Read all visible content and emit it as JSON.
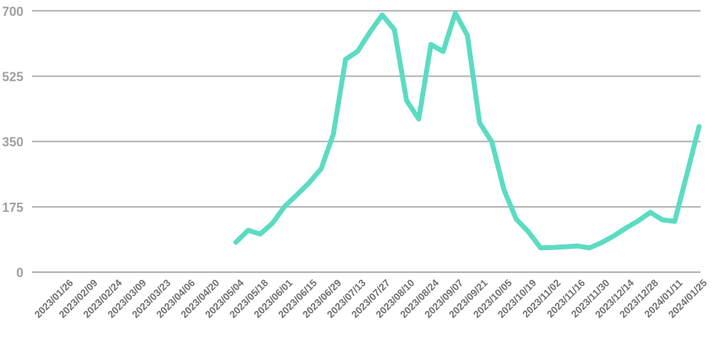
{
  "page": {
    "background": "#ffffff"
  },
  "chart_data": {
    "type": "line",
    "title": "",
    "xlabel": "",
    "ylabel": "",
    "ylim": [
      0,
      700
    ],
    "yticks": [
      0,
      175,
      350,
      525,
      700
    ],
    "grid": "horizontal",
    "legend": "none",
    "colors": {
      "line": "#5cdcc2",
      "gridline": "#adadad",
      "y_tick_label": "#a0a0a0",
      "x_tick_label": "#707070",
      "background": "#ffffff"
    },
    "x_axis": {
      "tick_labels": [
        "2023/01/26",
        "2023/02/09",
        "2023/02/24",
        "2023/03/09",
        "2023/03/23",
        "2023/04/06",
        "2023/04/20",
        "2023/05/04",
        "2023/05/18",
        "2023/06/01",
        "2023/06/15",
        "2023/06/29",
        "2023/07/13",
        "2023/07/27",
        "2023/08/10",
        "2023/08/24",
        "2023/09/07",
        "2023/09/21",
        "2023/10/05",
        "2023/10/19",
        "2023/11/02",
        "2023/11/16",
        "2023/11/30",
        "2023/12/14",
        "2023/12/28",
        "2024/01/11",
        "2024/01/25"
      ],
      "tick_interval_days": 14,
      "label_rotation_deg": 45
    },
    "series": [
      {
        "name": "value",
        "color": "#5cdcc2",
        "point_interval_days": 7,
        "data_starts_at_tick": "2023/05/04",
        "x": [
          "2023/05/04",
          "2023/05/11",
          "2023/05/18",
          "2023/05/25",
          "2023/06/01",
          "2023/06/08",
          "2023/06/15",
          "2023/06/22",
          "2023/06/29",
          "2023/07/06",
          "2023/07/13",
          "2023/07/20",
          "2023/07/27",
          "2023/08/03",
          "2023/08/10",
          "2023/08/17",
          "2023/08/24",
          "2023/08/31",
          "2023/09/07",
          "2023/09/14",
          "2023/09/21",
          "2023/09/28",
          "2023/10/05",
          "2023/10/12",
          "2023/10/19",
          "2023/10/26",
          "2023/11/02",
          "2023/11/09",
          "2023/11/16",
          "2023/11/23",
          "2023/11/30",
          "2023/12/07",
          "2023/12/14",
          "2023/12/21",
          "2023/12/28",
          "2024/01/04",
          "2024/01/11",
          "2024/01/18",
          "2024/01/25"
        ],
        "values": [
          80,
          112,
          102,
          131,
          176,
          207,
          239,
          277,
          370,
          570,
          592,
          643,
          689,
          650,
          460,
          410,
          610,
          591,
          694,
          634,
          400,
          349,
          220,
          142,
          108,
          65,
          66,
          68,
          70,
          65,
          79,
          97,
          118,
          137,
          160,
          140,
          136,
          262,
          390
        ]
      }
    ]
  }
}
